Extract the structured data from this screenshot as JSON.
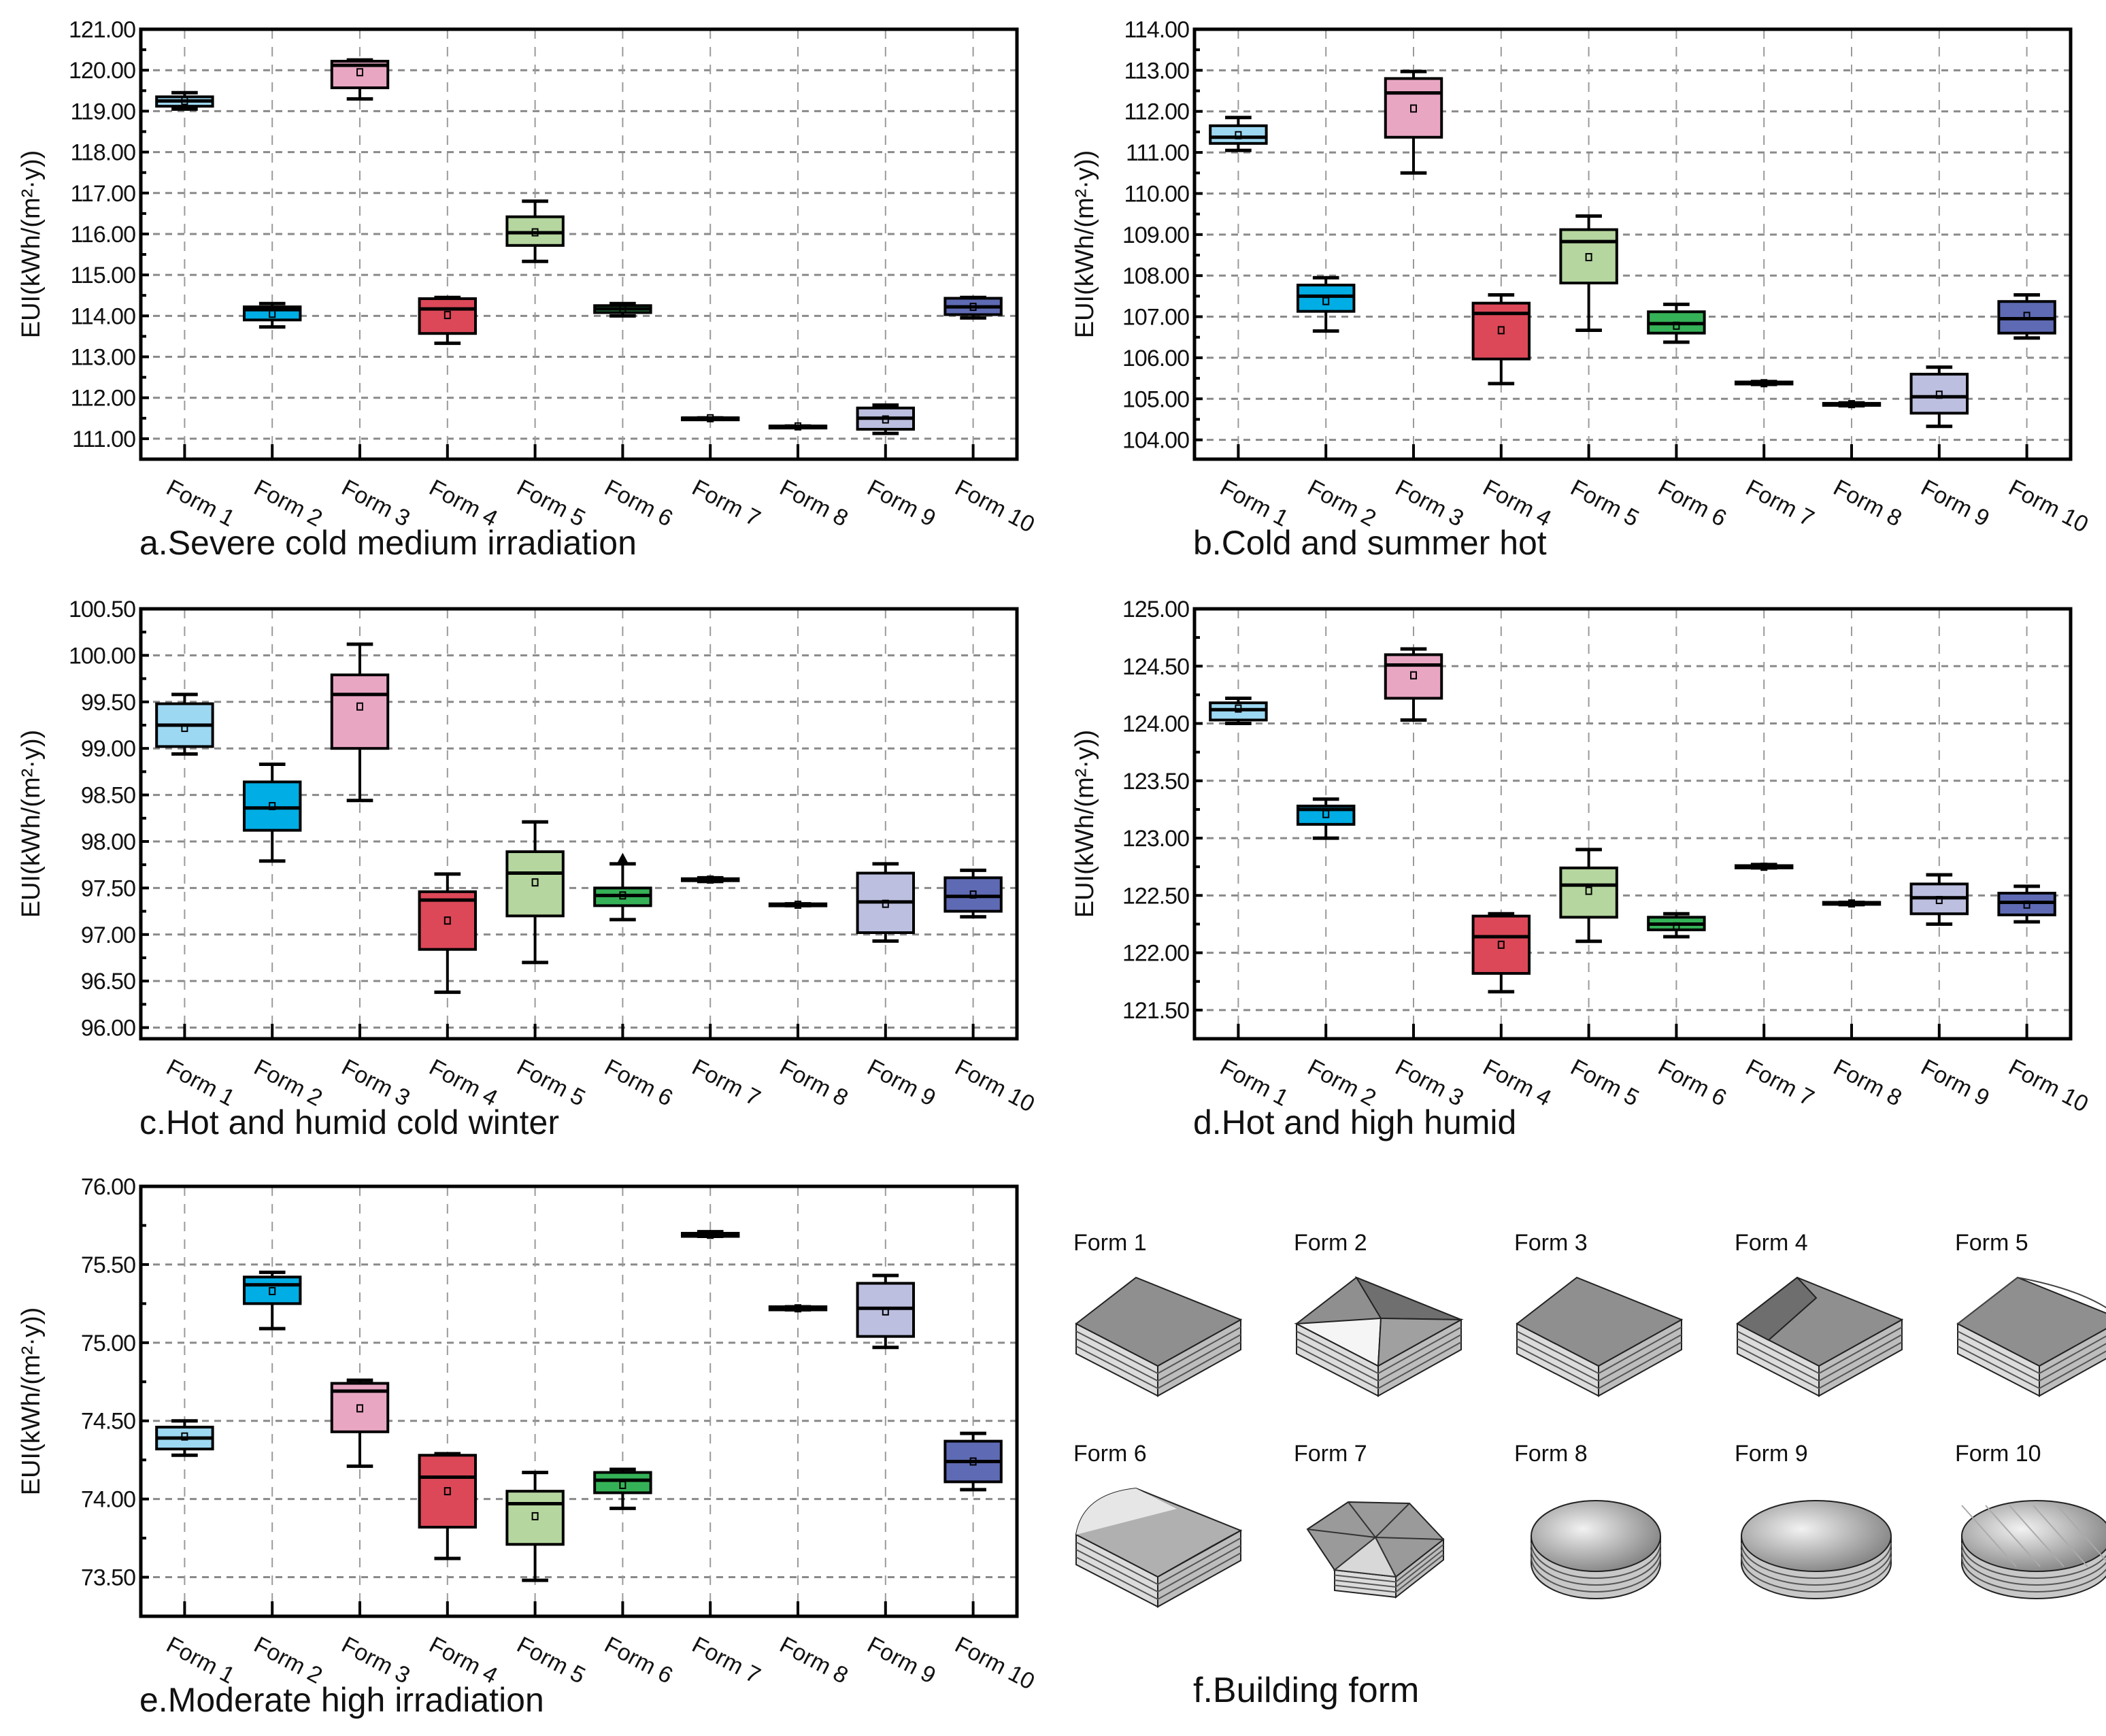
{
  "chart_data": [
    {
      "id": "a",
      "type": "box",
      "title": "a.Severe cold medium irradiation",
      "ylabel": "EUI(kWh/(m²·y))",
      "ylim": [
        110.5,
        121
      ],
      "yticks": [
        111,
        112,
        113,
        114,
        115,
        116,
        117,
        118,
        119,
        120,
        121
      ],
      "ytick_labels": [
        "111.00",
        "112.00",
        "113.00",
        "114.00",
        "115.00",
        "116.00",
        "117.00",
        "118.00",
        "119.00",
        "120.00",
        "121.00"
      ],
      "categories": [
        "Form 1",
        "Form 2",
        "Form 3",
        "Form 4",
        "Form 5",
        "Form 6",
        "Form 7",
        "Form 8",
        "Form 9",
        "Form 10"
      ],
      "boxes": [
        {
          "min": 119.05,
          "q1": 119.12,
          "median": 119.25,
          "q3": 119.35,
          "max": 119.45,
          "mean": 119.25
        },
        {
          "min": 113.73,
          "q1": 113.9,
          "median": 114.15,
          "q3": 114.22,
          "max": 114.3,
          "mean": 114.05
        },
        {
          "min": 119.3,
          "q1": 119.57,
          "median": 120.12,
          "q3": 120.22,
          "max": 120.25,
          "mean": 119.95
        },
        {
          "min": 113.33,
          "q1": 113.57,
          "median": 114.17,
          "q3": 114.42,
          "max": 114.45,
          "mean": 114.02
        },
        {
          "min": 115.33,
          "q1": 115.72,
          "median": 116.03,
          "q3": 116.42,
          "max": 116.8,
          "mean": 116.04
        },
        {
          "min": 114.0,
          "q1": 114.08,
          "median": 114.17,
          "q3": 114.25,
          "max": 114.3,
          "mean": 114.17
        },
        {
          "min": 111.49,
          "q1": 111.5,
          "median": 111.5,
          "q3": 111.51,
          "max": 111.51,
          "mean": 111.5
        },
        {
          "min": 111.29,
          "q1": 111.3,
          "median": 111.3,
          "q3": 111.31,
          "max": 111.31,
          "mean": 111.3
        },
        {
          "min": 111.13,
          "q1": 111.23,
          "median": 111.5,
          "q3": 111.75,
          "max": 111.82,
          "mean": 111.47
        },
        {
          "min": 113.95,
          "q1": 114.03,
          "median": 114.22,
          "q3": 114.43,
          "max": 114.45,
          "mean": 114.22
        }
      ]
    },
    {
      "id": "b",
      "type": "box",
      "title": "b.Cold and summer hot",
      "ylabel": "EUI(kWh/(m²·y))",
      "ylim": [
        103.53,
        114
      ],
      "yticks": [
        104,
        105,
        106,
        107,
        108,
        109,
        110,
        111,
        112,
        113,
        114
      ],
      "ytick_labels": [
        "104.00",
        "105.00",
        "106.00",
        "107.00",
        "108.00",
        "109.00",
        "110.00",
        "111.00",
        "112.00",
        "113.00",
        "114.00"
      ],
      "categories": [
        "Form 1",
        "Form 2",
        "Form 3",
        "Form 4",
        "Form 5",
        "Form 6",
        "Form 7",
        "Form 8",
        "Form 9",
        "Form 10"
      ],
      "boxes": [
        {
          "min": 111.05,
          "q1": 111.22,
          "median": 111.37,
          "q3": 111.65,
          "max": 111.85,
          "mean": 111.42
        },
        {
          "min": 106.65,
          "q1": 107.13,
          "median": 107.5,
          "q3": 107.77,
          "max": 107.95,
          "mean": 107.38
        },
        {
          "min": 110.5,
          "q1": 111.37,
          "median": 112.45,
          "q3": 112.8,
          "max": 112.97,
          "mean": 112.07
        },
        {
          "min": 105.37,
          "q1": 105.97,
          "median": 107.08,
          "q3": 107.33,
          "max": 107.53,
          "mean": 106.67
        },
        {
          "min": 106.67,
          "q1": 107.82,
          "median": 108.83,
          "q3": 109.12,
          "max": 109.45,
          "mean": 108.45
        },
        {
          "min": 106.38,
          "q1": 106.6,
          "median": 106.83,
          "q3": 107.12,
          "max": 107.3,
          "mean": 106.78
        },
        {
          "min": 105.35,
          "q1": 105.36,
          "median": 105.38,
          "q3": 105.41,
          "max": 105.42,
          "mean": 105.38
        },
        {
          "min": 104.83,
          "q1": 104.85,
          "median": 104.87,
          "q3": 104.89,
          "max": 104.9,
          "mean": 104.87
        },
        {
          "min": 104.33,
          "q1": 104.65,
          "median": 105.05,
          "q3": 105.6,
          "max": 105.77,
          "mean": 105.1
        },
        {
          "min": 106.48,
          "q1": 106.6,
          "median": 106.95,
          "q3": 107.37,
          "max": 107.53,
          "mean": 107.02
        }
      ]
    },
    {
      "id": "c",
      "type": "box",
      "title": "c.Hot and humid cold winter",
      "ylabel": "EUI(kWh/(m²·y))",
      "ylim": [
        95.88,
        100.5
      ],
      "yticks": [
        96,
        96.5,
        97,
        97.5,
        98,
        98.5,
        99,
        99.5,
        100,
        100.5
      ],
      "ytick_labels": [
        "96.00",
        "96.50",
        "97.00",
        "97.50",
        "98.00",
        "98.50",
        "99.00",
        "99.50",
        "100.00",
        "100.50"
      ],
      "categories": [
        "Form 1",
        "Form 2",
        "Form 3",
        "Form 4",
        "Form 5",
        "Form 6",
        "Form 7",
        "Form 8",
        "Form 9",
        "Form 10"
      ],
      "boxes": [
        {
          "min": 98.94,
          "q1": 99.02,
          "median": 99.25,
          "q3": 99.48,
          "max": 99.58,
          "mean": 99.22
        },
        {
          "min": 97.79,
          "q1": 98.12,
          "median": 98.36,
          "q3": 98.64,
          "max": 98.83,
          "mean": 98.38
        },
        {
          "min": 98.44,
          "q1": 99.0,
          "median": 99.58,
          "q3": 99.79,
          "max": 100.12,
          "mean": 99.45
        },
        {
          "min": 96.38,
          "q1": 96.84,
          "median": 97.37,
          "q3": 97.46,
          "max": 97.65,
          "mean": 97.15
        },
        {
          "min": 96.7,
          "q1": 97.2,
          "median": 97.66,
          "q3": 97.89,
          "max": 98.21,
          "mean": 97.56
        },
        {
          "min": 97.16,
          "q1": 97.31,
          "median": 97.42,
          "q3": 97.5,
          "max": 97.76,
          "mean": 97.42,
          "outliers": [
            97.82
          ]
        },
        {
          "min": 97.57,
          "q1": 97.58,
          "median": 97.59,
          "q3": 97.6,
          "max": 97.61,
          "mean": 97.59
        },
        {
          "min": 97.31,
          "q1": 97.31,
          "median": 97.32,
          "q3": 97.33,
          "max": 97.33,
          "mean": 97.32
        },
        {
          "min": 96.93,
          "q1": 97.02,
          "median": 97.35,
          "q3": 97.66,
          "max": 97.76,
          "mean": 97.33
        },
        {
          "min": 97.19,
          "q1": 97.25,
          "median": 97.41,
          "q3": 97.61,
          "max": 97.69,
          "mean": 97.43
        }
      ]
    },
    {
      "id": "d",
      "type": "box",
      "title": "d.Hot and high humid",
      "ylabel": "EUI(kWh/(m²·y))",
      "ylim": [
        121.25,
        125
      ],
      "yticks": [
        121.5,
        122,
        122.5,
        123,
        123.5,
        124,
        124.5,
        125
      ],
      "ytick_labels": [
        "121.50",
        "122.00",
        "122.50",
        "123.00",
        "123.50",
        "124.00",
        "124.50",
        "125.00"
      ],
      "categories": [
        "Form 1",
        "Form 2",
        "Form 3",
        "Form 4",
        "Form 5",
        "Form 6",
        "Form 7",
        "Form 8",
        "Form 9",
        "Form 10"
      ],
      "boxes": [
        {
          "min": 124.0,
          "q1": 124.03,
          "median": 124.12,
          "q3": 124.18,
          "max": 124.22,
          "mean": 124.13
        },
        {
          "min": 123.0,
          "q1": 123.12,
          "median": 123.25,
          "q3": 123.28,
          "max": 123.34,
          "mean": 123.21
        },
        {
          "min": 124.03,
          "q1": 124.22,
          "median": 124.51,
          "q3": 124.6,
          "max": 124.65,
          "mean": 124.42
        },
        {
          "min": 121.66,
          "q1": 121.82,
          "median": 122.14,
          "q3": 122.32,
          "max": 122.34,
          "mean": 122.07
        },
        {
          "min": 122.1,
          "q1": 122.31,
          "median": 122.59,
          "q3": 122.74,
          "max": 122.9,
          "mean": 122.54
        },
        {
          "min": 122.14,
          "q1": 122.2,
          "median": 122.25,
          "q3": 122.31,
          "max": 122.34,
          "mean": 122.23
        },
        {
          "min": 122.74,
          "q1": 122.74,
          "median": 122.75,
          "q3": 122.76,
          "max": 122.77,
          "mean": 122.75
        },
        {
          "min": 122.42,
          "q1": 122.43,
          "median": 122.43,
          "q3": 122.44,
          "max": 122.44,
          "mean": 122.43
        },
        {
          "min": 122.25,
          "q1": 122.34,
          "median": 122.48,
          "q3": 122.6,
          "max": 122.68,
          "mean": 122.46
        },
        {
          "min": 122.27,
          "q1": 122.33,
          "median": 122.44,
          "q3": 122.52,
          "max": 122.58,
          "mean": 122.42
        }
      ]
    },
    {
      "id": "e",
      "type": "box",
      "title": "e.Moderate high irradiation",
      "ylabel": "EUI(kWh/(m²·y))",
      "ylim": [
        73.25,
        76
      ],
      "yticks": [
        73.5,
        74,
        74.5,
        75,
        75.5,
        76
      ],
      "ytick_labels": [
        "73.50",
        "74.00",
        "74.50",
        "75.00",
        "75.50",
        "76.00"
      ],
      "categories": [
        "Form 1",
        "Form 2",
        "Form 3",
        "Form 4",
        "Form 5",
        "Form 6",
        "Form 7",
        "Form 8",
        "Form 9",
        "Form 10"
      ],
      "boxes": [
        {
          "min": 74.28,
          "q1": 74.32,
          "median": 74.39,
          "q3": 74.46,
          "max": 74.5,
          "mean": 74.4
        },
        {
          "min": 75.09,
          "q1": 75.25,
          "median": 75.37,
          "q3": 75.42,
          "max": 75.45,
          "mean": 75.33
        },
        {
          "min": 74.21,
          "q1": 74.43,
          "median": 74.69,
          "q3": 74.74,
          "max": 74.76,
          "mean": 74.58
        },
        {
          "min": 73.62,
          "q1": 73.82,
          "median": 74.14,
          "q3": 74.28,
          "max": 74.29,
          "mean": 74.05
        },
        {
          "min": 73.48,
          "q1": 73.71,
          "median": 73.97,
          "q3": 74.05,
          "max": 74.17,
          "mean": 73.89
        },
        {
          "min": 73.94,
          "q1": 74.04,
          "median": 74.12,
          "q3": 74.17,
          "max": 74.19,
          "mean": 74.09
        },
        {
          "min": 75.68,
          "q1": 75.68,
          "median": 75.69,
          "q3": 75.7,
          "max": 75.71,
          "mean": 75.69
        },
        {
          "min": 75.21,
          "q1": 75.21,
          "median": 75.22,
          "q3": 75.23,
          "max": 75.23,
          "mean": 75.22
        },
        {
          "min": 74.97,
          "q1": 75.04,
          "median": 75.22,
          "q3": 75.38,
          "max": 75.43,
          "mean": 75.2
        },
        {
          "min": 74.06,
          "q1": 74.11,
          "median": 74.24,
          "q3": 74.37,
          "max": 74.42,
          "mean": 74.24
        }
      ]
    }
  ],
  "series_colors": [
    "#9dd8f2",
    "#00ade4",
    "#e9a6c3",
    "#dc4858",
    "#b5d69f",
    "#35b257",
    "#ffffff",
    "#ffffff",
    "#bcbfdf",
    "#5e6ab3"
  ],
  "building_form": {
    "title": "f.Building form",
    "labels": [
      "Form 1",
      "Form 2",
      "Form 3",
      "Form 4",
      "Form 5",
      "Form 6",
      "Form 7",
      "Form 8",
      "Form 9",
      "Form 10"
    ]
  }
}
